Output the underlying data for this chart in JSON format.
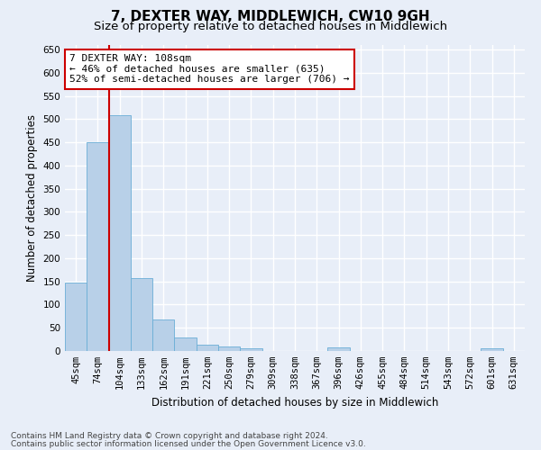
{
  "title": "7, DEXTER WAY, MIDDLEWICH, CW10 9GH",
  "subtitle": "Size of property relative to detached houses in Middlewich",
  "xlabel": "Distribution of detached houses by size in Middlewich",
  "ylabel": "Number of detached properties",
  "footer_line1": "Contains HM Land Registry data © Crown copyright and database right 2024.",
  "footer_line2": "Contains public sector information licensed under the Open Government Licence v3.0.",
  "categories": [
    "45sqm",
    "74sqm",
    "104sqm",
    "133sqm",
    "162sqm",
    "191sqm",
    "221sqm",
    "250sqm",
    "279sqm",
    "309sqm",
    "338sqm",
    "367sqm",
    "396sqm",
    "426sqm",
    "455sqm",
    "484sqm",
    "514sqm",
    "543sqm",
    "572sqm",
    "601sqm",
    "631sqm"
  ],
  "values": [
    148,
    450,
    508,
    158,
    68,
    30,
    13,
    9,
    5,
    0,
    0,
    0,
    7,
    0,
    0,
    0,
    0,
    0,
    0,
    6,
    0
  ],
  "bar_color": "#b8d0e8",
  "bar_edge_color": "#6aaed6",
  "vline_x_index": 2,
  "vline_color": "#cc0000",
  "annotation_text": "7 DEXTER WAY: 108sqm\n← 46% of detached houses are smaller (635)\n52% of semi-detached houses are larger (706) →",
  "annotation_box_facecolor": "#ffffff",
  "annotation_box_edgecolor": "#cc0000",
  "ylim": [
    0,
    660
  ],
  "yticks": [
    0,
    50,
    100,
    150,
    200,
    250,
    300,
    350,
    400,
    450,
    500,
    550,
    600,
    650
  ],
  "bg_color": "#e8eef8",
  "plot_bg_color": "#e8eef8",
  "grid_color": "#ffffff",
  "title_fontsize": 11,
  "subtitle_fontsize": 9.5,
  "tick_fontsize": 7.5,
  "ylabel_fontsize": 8.5,
  "xlabel_fontsize": 8.5,
  "annotation_fontsize": 8,
  "footer_fontsize": 6.5
}
